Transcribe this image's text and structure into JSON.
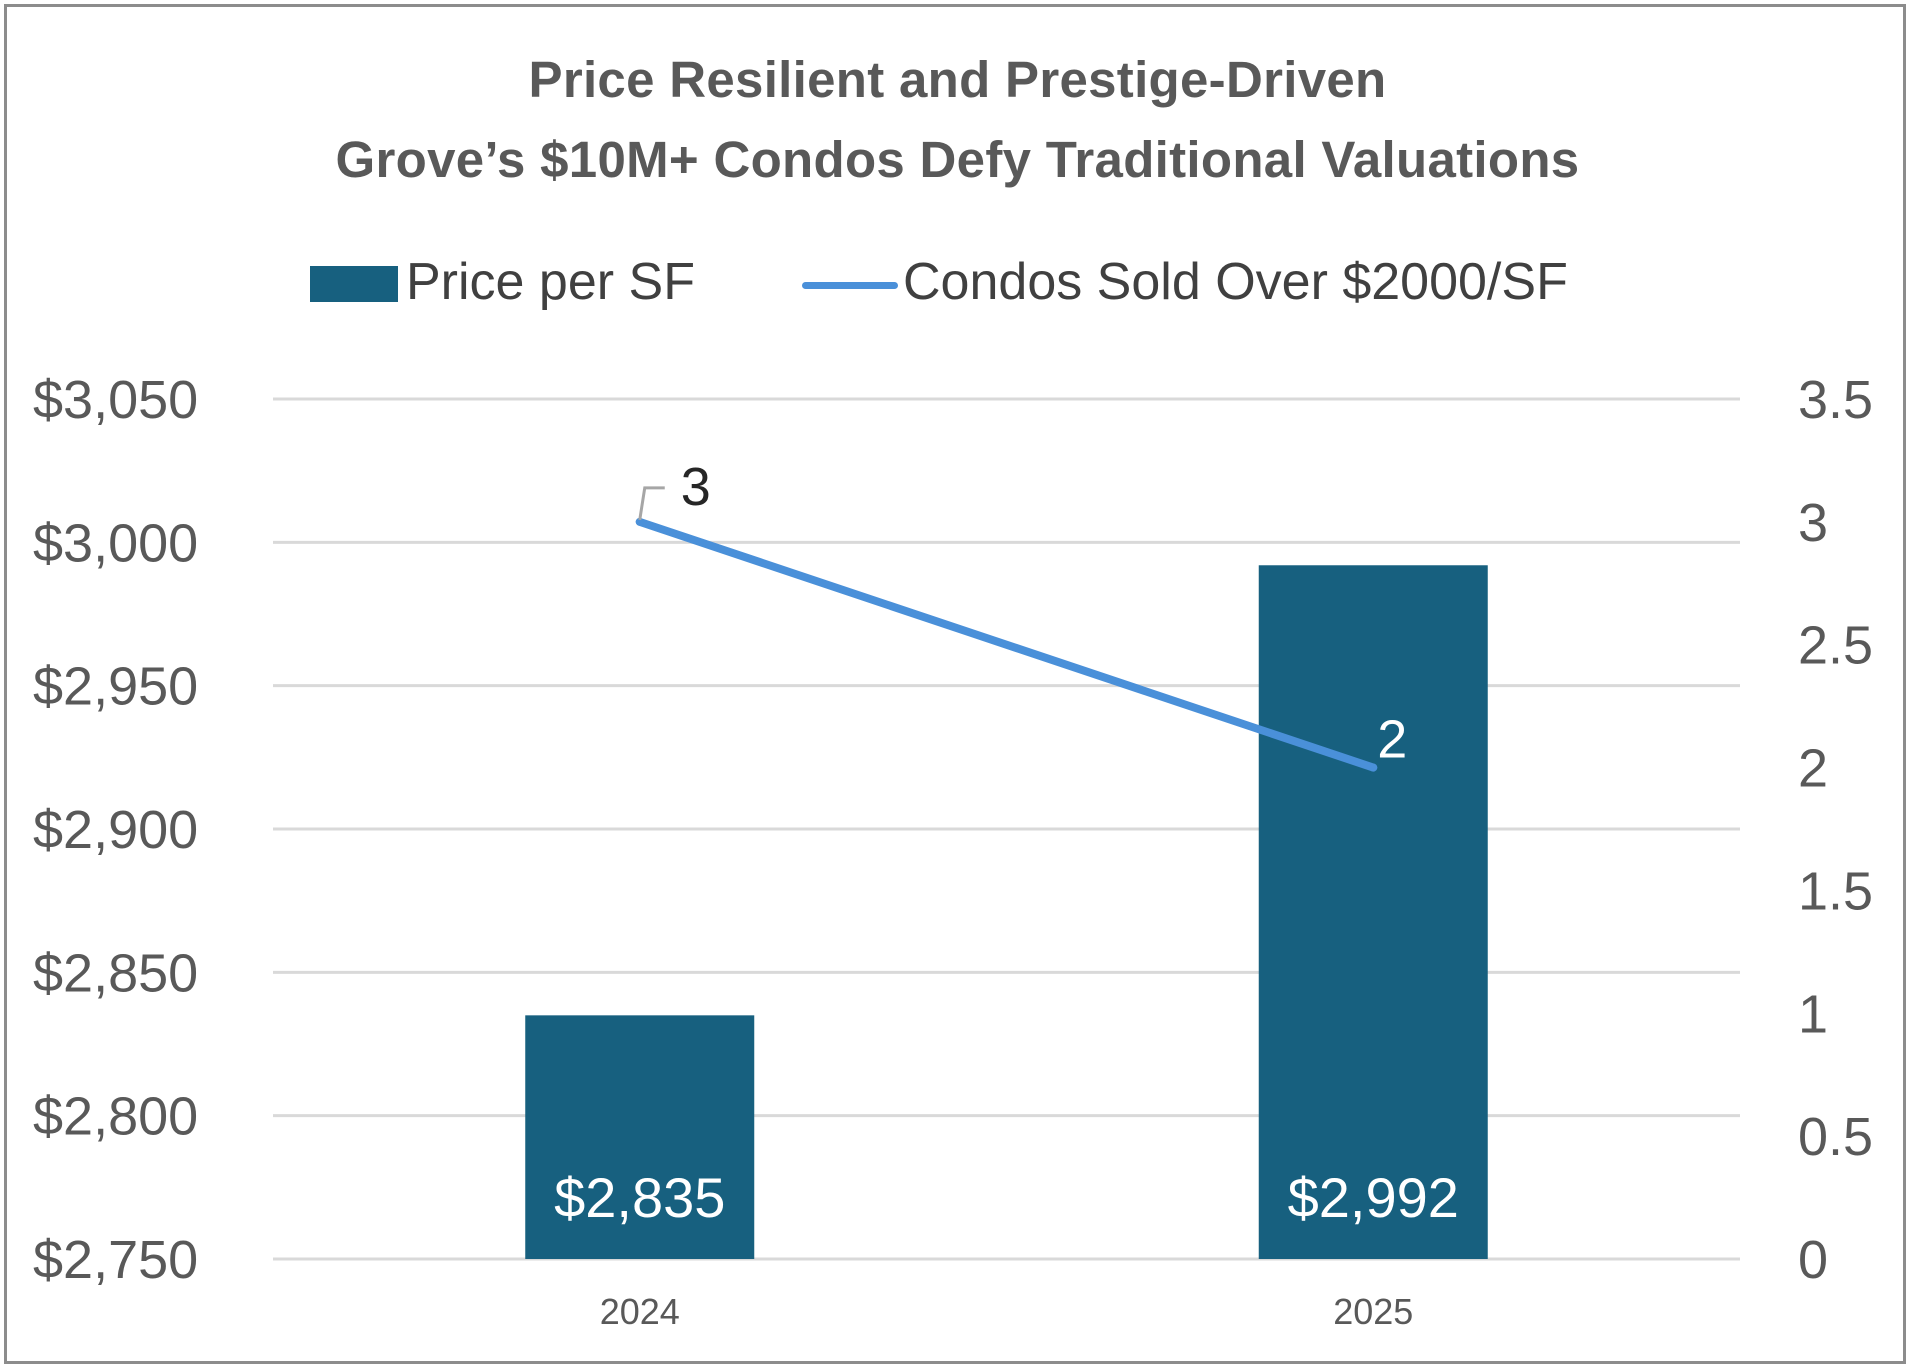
{
  "chart_data": {
    "type": "bar+line",
    "title": [
      "Price Resilient and Prestige-Driven",
      "Grove’s $10M+ Condos Defy Traditional Valuations"
    ],
    "categories": [
      "2024",
      "2025"
    ],
    "series": [
      {
        "name": "Price per SF",
        "type": "bar",
        "axis": "left",
        "values": [
          2835,
          2992
        ],
        "labels": [
          "$2,835",
          "$2,992"
        ],
        "color": "#17607f"
      },
      {
        "name": "Condos Sold Over $2000/SF",
        "type": "line",
        "axis": "right",
        "values": [
          3,
          2
        ],
        "labels": [
          "3",
          "2"
        ],
        "color": "#4a90d9"
      }
    ],
    "y_left": {
      "min": 2750,
      "max": 3050,
      "ticks": [
        2750,
        2800,
        2850,
        2900,
        2950,
        3000,
        3050
      ],
      "tick_labels": [
        "$2,750",
        "$2,800",
        "$2,850",
        "$2,900",
        "$2,950",
        "$3,000",
        "$3,050"
      ]
    },
    "y_right": {
      "min": 0,
      "max": 3.5,
      "ticks": [
        0,
        0.5,
        1,
        1.5,
        2,
        2.5,
        3,
        3.5
      ],
      "tick_labels": [
        "0",
        "0.5",
        "1",
        "1.5",
        "2",
        "2.5",
        "3",
        "3.5"
      ]
    },
    "legend": "top",
    "grid": true
  }
}
